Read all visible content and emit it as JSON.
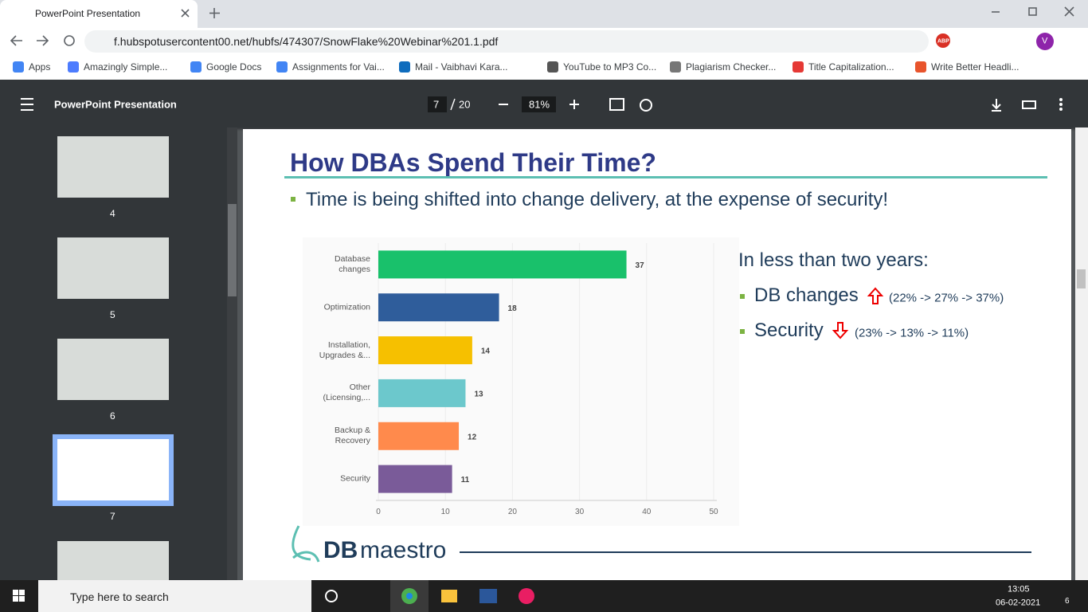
{
  "browser": {
    "tab_title": "PowerPoint Presentation",
    "url": "f.hubspotusercontent00.net/hubfs/474307/SnowFlake%20Webinar%201.1.pdf",
    "extension_badge": "ABP",
    "profile_initial": "V",
    "bookmarks": [
      "Apps",
      "Amazingly Simple...",
      "Google Docs",
      "Assignments for Vai...",
      "Mail - Vaibhavi Kara...",
      "YouTube to MP3 Co...",
      "Plagiarism Checker...",
      "Title Capitalization...",
      "Write Better Headli..."
    ]
  },
  "viewer": {
    "title": "PowerPoint Presentation",
    "page_current": "7",
    "page_total": "20",
    "zoom": "81%",
    "thumbnails": [
      "4",
      "5",
      "6",
      "7"
    ]
  },
  "slide": {
    "title": "How DBAs Spend Their Time?",
    "bullet": "Time is being shifted into change delivery, at the expense of security!",
    "side_heading": "In less than two years:",
    "side_items": [
      {
        "label": "DB changes",
        "detail": "(22% -> 27% -> 37%)"
      },
      {
        "label": "Security",
        "detail": "(23% -> 13% -> 11%)"
      }
    ],
    "logo_bold": "DB",
    "logo_light": "maestro",
    "chart": {
      "type": "bar",
      "orientation": "horizontal",
      "categories": [
        "Database changes",
        "Optimization",
        "Installation, Upgrades &...",
        "Other (Licensing,...",
        "Backup & Recovery",
        "Security"
      ],
      "values": [
        37,
        18,
        14,
        13,
        12,
        11
      ],
      "colors": [
        "#19c16b",
        "#2f5d9b",
        "#f6c000",
        "#6cc8cc",
        "#ff8a4c",
        "#7a5b99"
      ],
      "xlim": [
        0,
        50
      ],
      "xticks": [
        0,
        10,
        20,
        30,
        40,
        50
      ],
      "grid": true
    }
  },
  "taskbar": {
    "search": "Type here to search",
    "time": "13:05",
    "date": "06-02-2021",
    "notifications": "6"
  }
}
